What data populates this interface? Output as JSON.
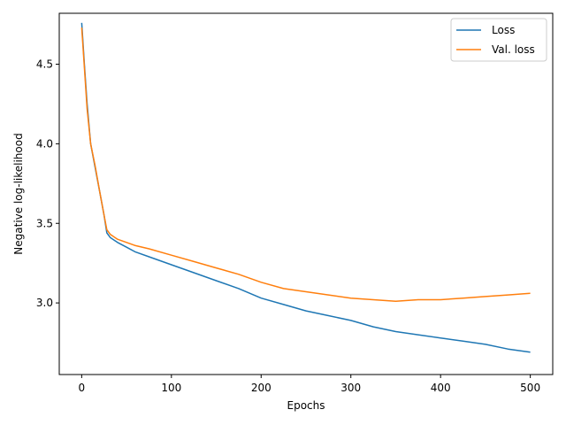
{
  "chart_data": {
    "type": "line",
    "xlabel": "Epochs",
    "ylabel": "Negative log-likelihood",
    "xlim": [
      -25,
      525
    ],
    "ylim": [
      2.55,
      4.82
    ],
    "xticks": [
      0,
      100,
      200,
      300,
      400,
      500
    ],
    "xtick_labels": [
      "0",
      "100",
      "200",
      "300",
      "400",
      "500"
    ],
    "yticks": [
      3.0,
      3.5,
      4.0,
      4.5
    ],
    "ytick_labels": [
      "3.0",
      "3.5",
      "4.0",
      "4.5"
    ],
    "grid": false,
    "legend_position": "top-right",
    "series": [
      {
        "name": "Loss",
        "color": "#1f77b4",
        "x": [
          0,
          3,
          6,
          10,
          15,
          20,
          25,
          28,
          32,
          40,
          50,
          60,
          75,
          100,
          125,
          150,
          175,
          200,
          225,
          250,
          275,
          300,
          325,
          350,
          375,
          400,
          425,
          450,
          475,
          500
        ],
        "y": [
          4.76,
          4.5,
          4.25,
          4.0,
          3.85,
          3.7,
          3.55,
          3.44,
          3.41,
          3.38,
          3.35,
          3.32,
          3.29,
          3.24,
          3.19,
          3.14,
          3.09,
          3.03,
          2.99,
          2.95,
          2.92,
          2.89,
          2.85,
          2.82,
          2.8,
          2.78,
          2.76,
          2.74,
          2.71,
          2.69
        ]
      },
      {
        "name": "Val. loss",
        "color": "#ff7f0e",
        "x": [
          0,
          3,
          6,
          10,
          15,
          20,
          25,
          28,
          32,
          40,
          50,
          60,
          75,
          100,
          125,
          150,
          175,
          200,
          225,
          250,
          275,
          300,
          325,
          350,
          375,
          400,
          425,
          450,
          475,
          500
        ],
        "y": [
          4.73,
          4.48,
          4.22,
          4.0,
          3.86,
          3.7,
          3.55,
          3.46,
          3.43,
          3.4,
          3.38,
          3.36,
          3.34,
          3.3,
          3.26,
          3.22,
          3.18,
          3.13,
          3.09,
          3.07,
          3.05,
          3.03,
          3.02,
          3.01,
          3.02,
          3.02,
          3.03,
          3.04,
          3.05,
          3.06
        ]
      }
    ]
  }
}
